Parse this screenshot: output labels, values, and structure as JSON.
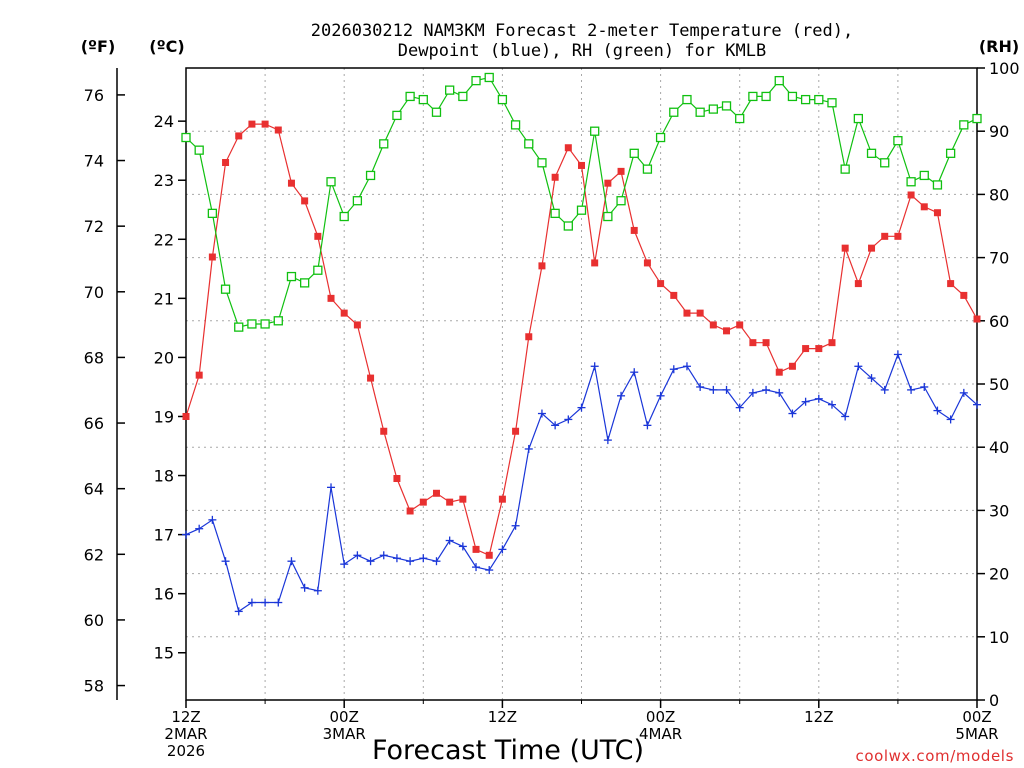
{
  "header": {
    "title_line1": "2026030212 NAM3KM Forecast 2-meter Temperature (red),",
    "title_line2": "Dewpoint (blue), RH (green) for KMLB",
    "unit_f": "(ºF)",
    "unit_c": "(ºC)",
    "unit_rh": "(RH)"
  },
  "footer": {
    "xlabel": "Forecast Time (UTC)",
    "credit": "coolwx.com/models"
  },
  "colors": {
    "temperature": "#e83030",
    "dewpoint": "#1a36d8",
    "rh": "#10c010",
    "credit": "#e03030",
    "grid": "#a8a8a8"
  },
  "chart_data": {
    "type": "line",
    "x_unit": "forecast hours since 2026-03-02 12Z",
    "xlim": [
      0,
      60
    ],
    "ylim_celsius": [
      14.2,
      24.9
    ],
    "ylim_rh": [
      0,
      100
    ],
    "ylim_fahrenheit": [
      57.56,
      76.82
    ],
    "grid": true,
    "x_ticks": [
      {
        "x": 0,
        "line1": "12Z",
        "line2": "2MAR",
        "line3": "2026"
      },
      {
        "x": 12,
        "line1": "00Z",
        "line2": "3MAR",
        "line3": ""
      },
      {
        "x": 24,
        "line1": "12Z",
        "line2": "",
        "line3": ""
      },
      {
        "x": 36,
        "line1": "00Z",
        "line2": "4MAR",
        "line3": ""
      },
      {
        "x": 48,
        "line1": "12Z",
        "line2": "",
        "line3": ""
      },
      {
        "x": 60,
        "line1": "00Z",
        "line2": "5MAR",
        "line3": ""
      }
    ],
    "celsius_ticks": [
      15,
      16,
      17,
      18,
      19,
      20,
      21,
      22,
      23,
      24
    ],
    "fahrenheit_ticks": [
      58,
      60,
      62,
      64,
      66,
      68,
      70,
      72,
      74,
      76
    ],
    "rh_ticks": [
      0,
      10,
      20,
      30,
      40,
      50,
      60,
      70,
      80,
      90,
      100
    ],
    "series": [
      {
        "key": "temperature",
        "values": [
          19.0,
          19.7,
          21.7,
          23.3,
          23.75,
          23.95,
          23.95,
          23.85,
          22.95,
          22.65,
          22.05,
          21.0,
          20.75,
          20.55,
          19.65,
          18.75,
          17.95,
          17.4,
          17.55,
          17.7,
          17.55,
          17.6,
          16.75,
          16.65,
          17.6,
          18.75,
          20.35,
          21.55,
          23.05,
          23.55,
          23.25,
          21.6,
          22.95,
          23.15,
          22.15,
          21.6,
          21.25,
          21.05,
          20.75,
          20.75,
          20.55,
          20.45,
          20.55,
          20.25,
          20.25,
          19.75,
          19.85,
          20.15,
          20.15,
          20.25,
          21.85,
          21.25,
          21.85,
          22.05,
          22.05,
          22.75,
          22.55,
          22.45,
          21.25,
          21.05,
          20.65
        ]
      },
      {
        "key": "dewpoint",
        "values": [
          17.0,
          17.1,
          17.25,
          16.55,
          15.7,
          15.85,
          15.85,
          15.85,
          16.55,
          16.1,
          16.05,
          17.8,
          16.5,
          16.65,
          16.55,
          16.65,
          16.6,
          16.55,
          16.6,
          16.55,
          16.9,
          16.8,
          16.45,
          16.4,
          16.75,
          17.15,
          18.45,
          19.05,
          18.85,
          18.95,
          19.15,
          19.85,
          18.6,
          19.35,
          19.75,
          18.85,
          19.35,
          19.8,
          19.85,
          19.5,
          19.45,
          19.45,
          19.15,
          19.4,
          19.45,
          19.4,
          19.05,
          19.25,
          19.3,
          19.2,
          19.0,
          19.85,
          19.65,
          19.45,
          20.05,
          19.45,
          19.5,
          19.1,
          18.95,
          19.4,
          19.2
        ]
      },
      {
        "key": "rh",
        "values": [
          89,
          87,
          77,
          65,
          59,
          59.5,
          59.5,
          60,
          67,
          66,
          68,
          82,
          76.5,
          79,
          83,
          88,
          92.5,
          95.5,
          95,
          93,
          96.5,
          95.5,
          98,
          98.5,
          95,
          91,
          88,
          85,
          77,
          75,
          77.5,
          90,
          76.5,
          79,
          86.5,
          84,
          89,
          93,
          95,
          93,
          93.5,
          94,
          92,
          95.5,
          95.5,
          98,
          95.5,
          95,
          95,
          94.5,
          84,
          92,
          86.5,
          85,
          88.5,
          82,
          83,
          81.5,
          86.5,
          91,
          92
        ]
      }
    ]
  }
}
